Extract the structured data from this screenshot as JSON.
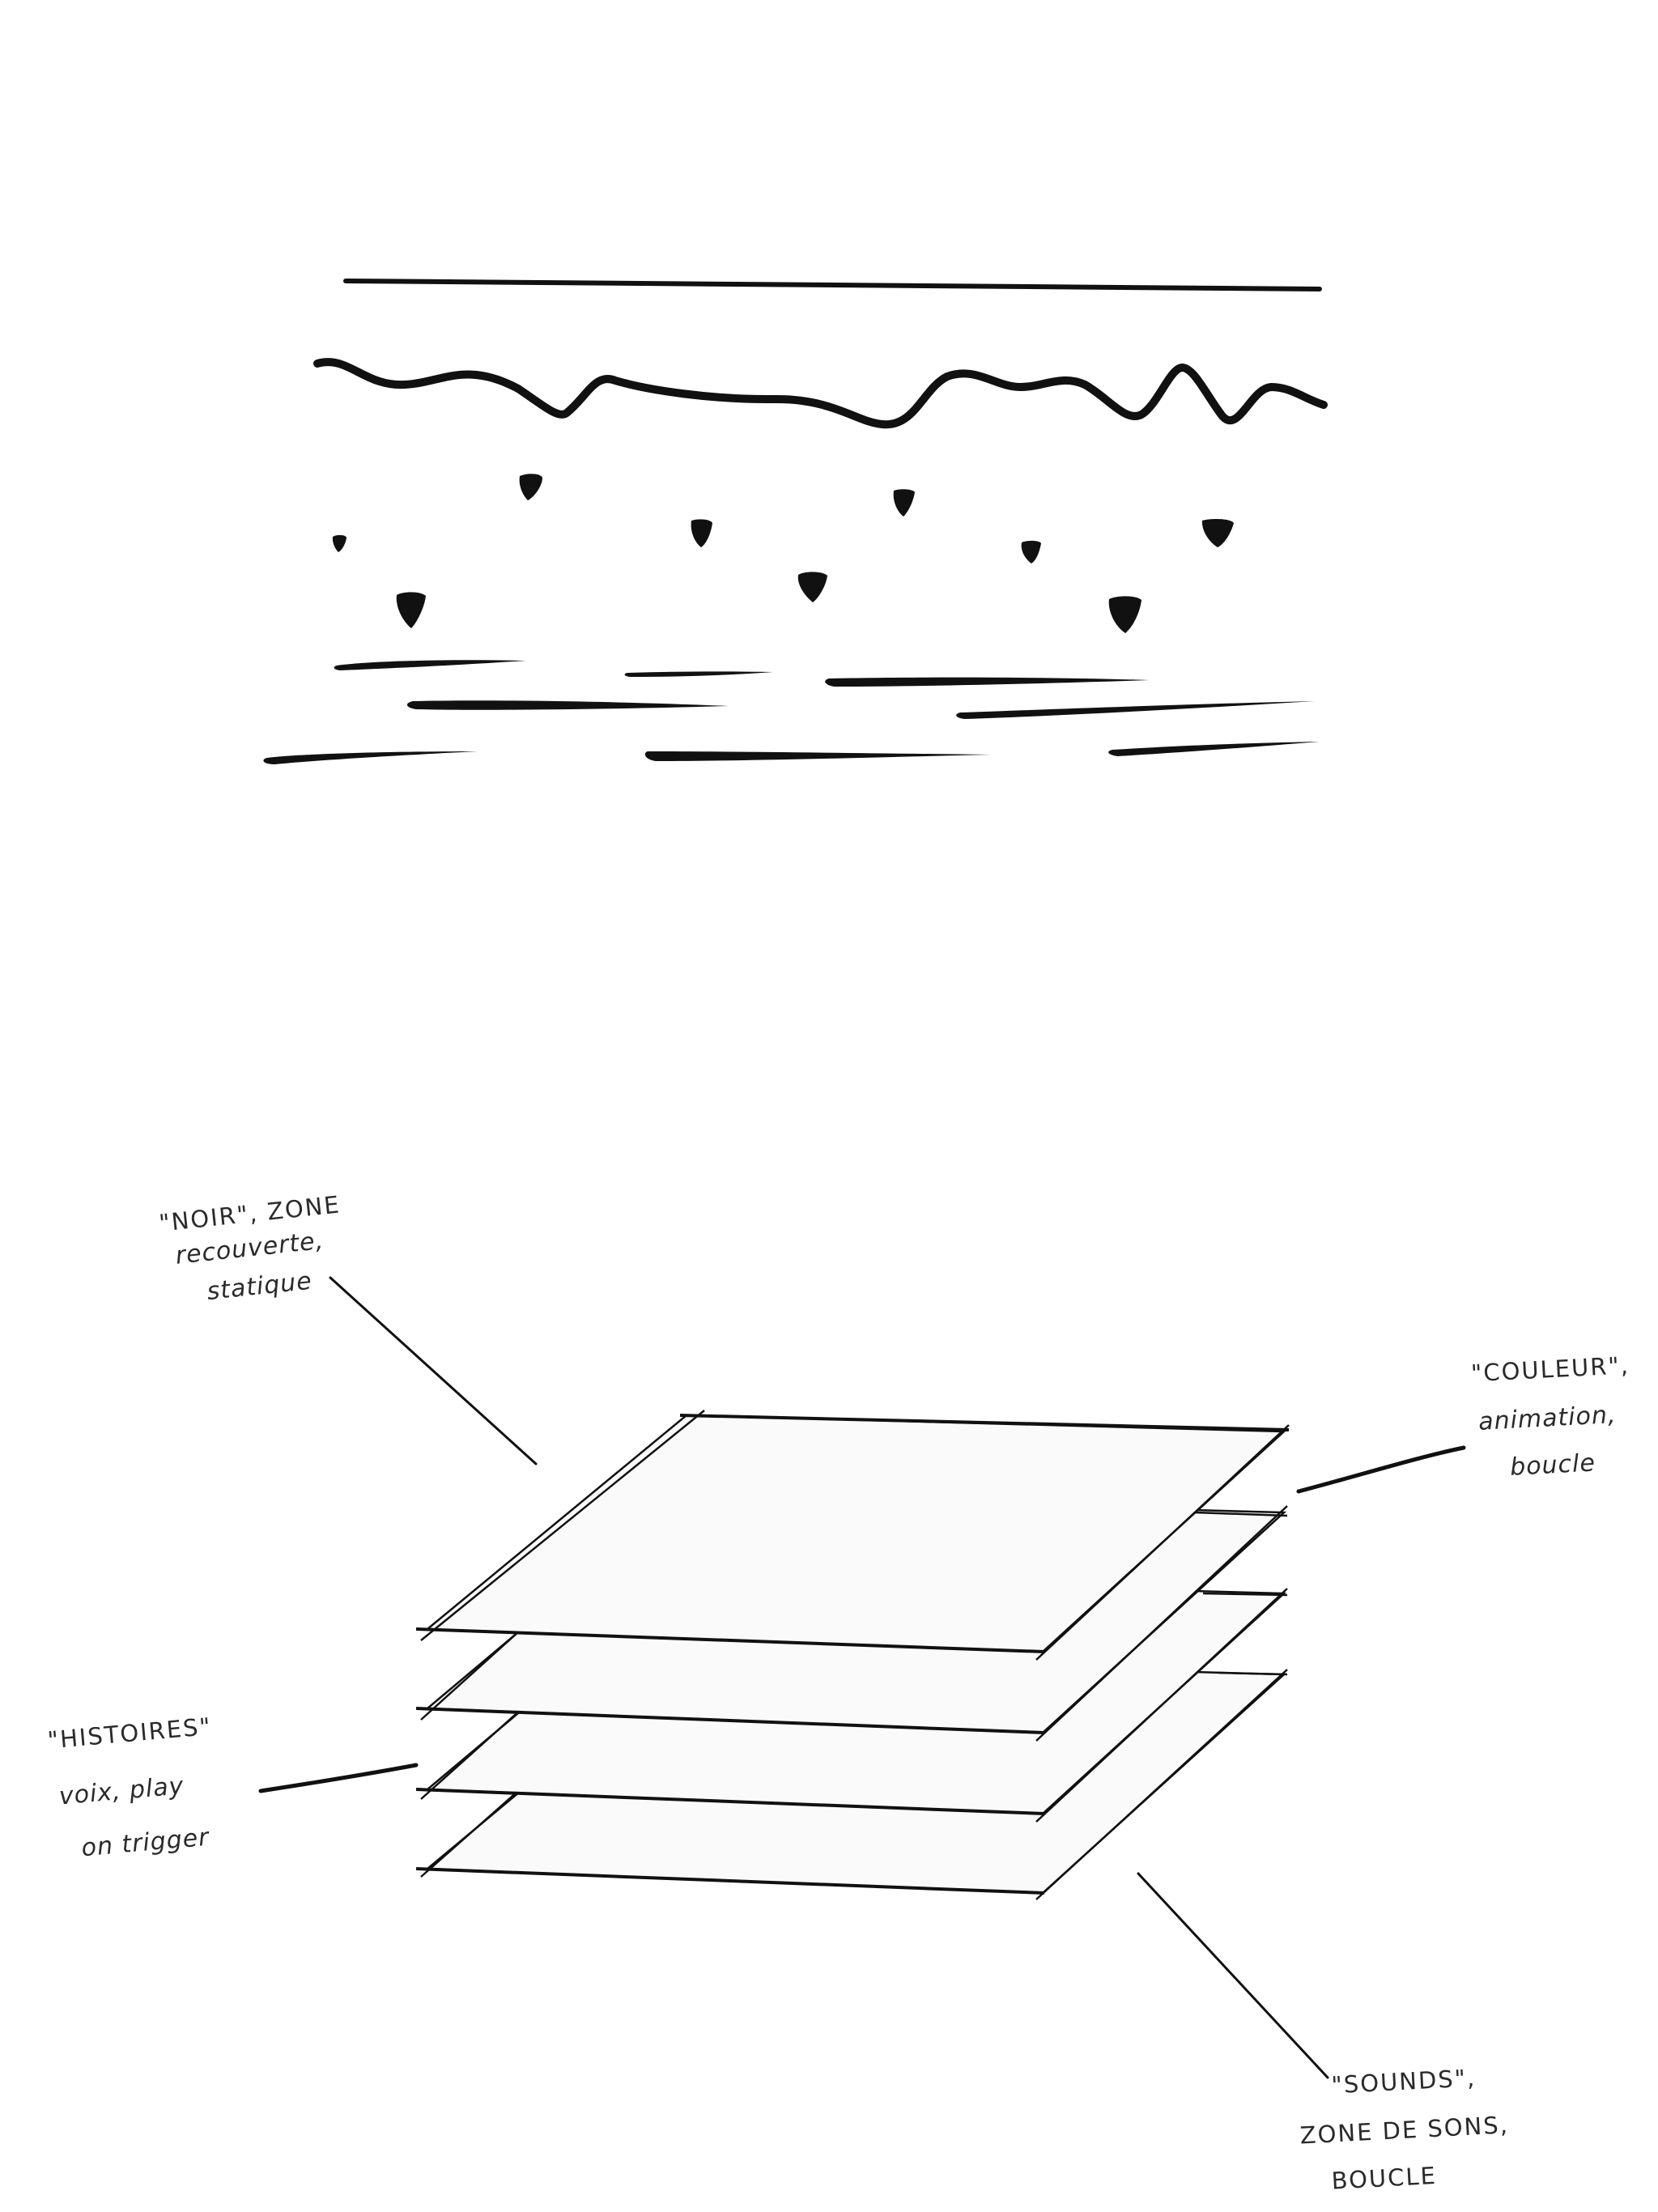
{
  "sketch": {
    "layers": {
      "noir": {
        "line1": "\"NOIR\", ZONE",
        "line2": "recouverte,",
        "line3": "statique"
      },
      "couleur": {
        "line1": "\"COULEUR\",",
        "line2": "animation,",
        "line3": "boucle"
      },
      "histoires": {
        "line1": "\"HISTOIRES\"",
        "line2": "voix, play",
        "line3": "on trigger"
      },
      "sounds": {
        "line1": "\"SOUNDS\",",
        "line2": "ZONE DE SONS,",
        "line3": "BOUCLE"
      }
    }
  },
  "colors": {
    "ink": "#111111",
    "layer_fill": "#fafafa",
    "label_ink": "#2a2a2a"
  }
}
